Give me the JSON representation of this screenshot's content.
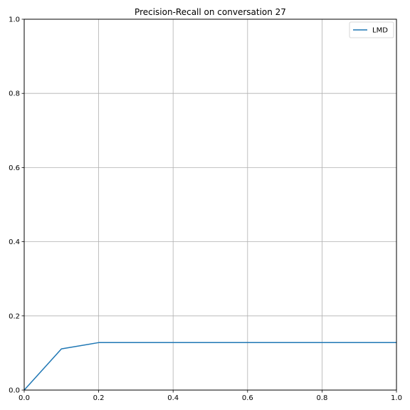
{
  "chart_data": {
    "type": "line",
    "title": "Precision-Recall on conversation 27",
    "xlabel": "",
    "ylabel": "",
    "xlim": [
      0,
      1
    ],
    "ylim": [
      0,
      1
    ],
    "xticks": [
      "0.0",
      "0.2",
      "0.4",
      "0.6",
      "0.8",
      "1.0"
    ],
    "yticks": [
      "0.0",
      "0.2",
      "0.4",
      "0.6",
      "0.8",
      "1.0"
    ],
    "grid": true,
    "legend_position": "top-right",
    "series": [
      {
        "name": "LMD",
        "color": "#1f77b4",
        "x": [
          0.0,
          0.1,
          0.2,
          0.3,
          0.4,
          0.5,
          0.6,
          0.7,
          0.8,
          0.9,
          1.0
        ],
        "y": [
          0.0,
          0.111,
          0.128,
          0.128,
          0.128,
          0.128,
          0.128,
          0.128,
          0.128,
          0.128,
          0.128
        ]
      }
    ]
  }
}
